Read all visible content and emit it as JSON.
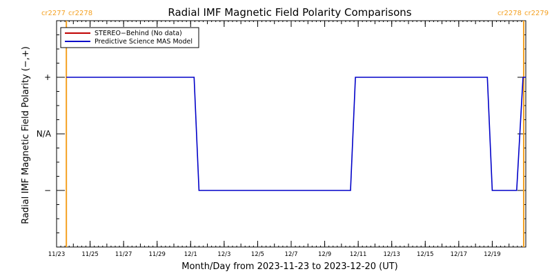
{
  "chart_data": {
    "type": "line",
    "title": "Radial IMF Magnetic Field Polarity Comparisons",
    "xlabel": "Month/Day from 2023-11-23 to 2023-12-20 (UT)",
    "ylabel": "Radial IMF Magnetic Field Polarity (−,+)",
    "x_domain": [
      "2023-11-23",
      "2023-12-21"
    ],
    "y_domain": [
      -2,
      2
    ],
    "xticks": [
      {
        "date": "2023-11-23",
        "label": "11/23"
      },
      {
        "date": "2023-11-25",
        "label": "11/25"
      },
      {
        "date": "2023-11-27",
        "label": "11/27"
      },
      {
        "date": "2023-11-29",
        "label": "11/29"
      },
      {
        "date": "2023-12-01",
        "label": "12/1"
      },
      {
        "date": "2023-12-03",
        "label": "12/3"
      },
      {
        "date": "2023-12-05",
        "label": "12/5"
      },
      {
        "date": "2023-12-07",
        "label": "12/7"
      },
      {
        "date": "2023-12-09",
        "label": "12/9"
      },
      {
        "date": "2023-12-11",
        "label": "12/11"
      },
      {
        "date": "2023-12-13",
        "label": "12/13"
      },
      {
        "date": "2023-12-15",
        "label": "12/15"
      },
      {
        "date": "2023-12-17",
        "label": "12/17"
      },
      {
        "date": "2023-12-19",
        "label": "12/19"
      }
    ],
    "yticks": [
      {
        "value": 1,
        "label": "+"
      },
      {
        "value": 0,
        "label": "N/A"
      },
      {
        "value": -1,
        "label": "−"
      }
    ],
    "carrington_markers": [
      {
        "date": "2023-11-23T14:00",
        "left_label": "cr2277",
        "right_label": "cr2278",
        "color": "#f4a020"
      },
      {
        "date": "2023-12-20T21:00",
        "left_label": "cr2278",
        "right_label": "cr2279",
        "color": "#f4a020"
      }
    ],
    "legend_position": "top-left",
    "series": [
      {
        "name": "STEREO−Behind (No data)",
        "color": "#c00000",
        "points": []
      },
      {
        "name": "Predictive Science MAS Model",
        "color": "#0000c8",
        "points": [
          {
            "x": "2023-11-23T14:00",
            "y": 1
          },
          {
            "x": "2023-12-01T05:00",
            "y": 1
          },
          {
            "x": "2023-12-01T12:00",
            "y": -1
          },
          {
            "x": "2023-12-10T13:00",
            "y": -1
          },
          {
            "x": "2023-12-10T20:00",
            "y": 1
          },
          {
            "x": "2023-12-18T17:00",
            "y": 1
          },
          {
            "x": "2023-12-19T00:00",
            "y": -1
          },
          {
            "x": "2023-12-20T11:00",
            "y": -1
          },
          {
            "x": "2023-12-20T20:00",
            "y": 1
          },
          {
            "x": "2023-12-21T00:00",
            "y": 1
          }
        ]
      }
    ]
  }
}
